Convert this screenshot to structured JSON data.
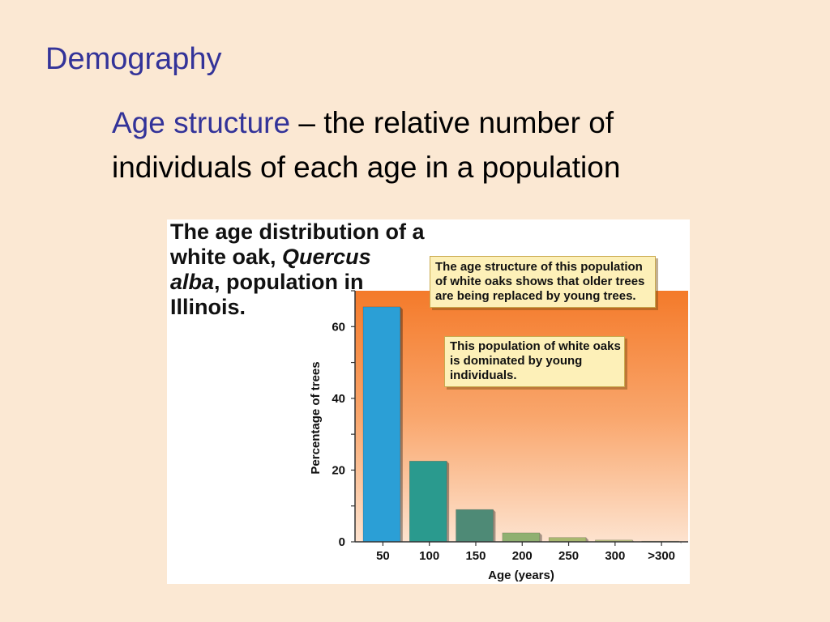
{
  "slide": {
    "title": "Demography",
    "definition_term": "Age structure",
    "definition_rest": " – the relative number of individuals of each age in a population"
  },
  "figure": {
    "title_line1": "The age distribution of a",
    "title_line2_prefix": "white oak, ",
    "title_line2_italic": "Quercus",
    "title_line3_italic": "alba",
    "title_line3_rest": ", population in",
    "title_line4": "Illinois.",
    "callout_top": "The age structure of this population of white oaks shows that older trees are being replaced by young trees.",
    "callout_bars": "This population of white oaks is dominated by young individuals."
  },
  "colors": {
    "background": "#fbe8d3",
    "title_blue": "#333399",
    "callout_fill": "#fdf0b8"
  },
  "chart_data": {
    "type": "bar",
    "categories": [
      "50",
      "100",
      "150",
      "200",
      "250",
      "300",
      ">300"
    ],
    "values": [
      65.5,
      22.5,
      9,
      2.5,
      1.2,
      0.5,
      0.1
    ],
    "bar_colors": [
      "#2b9fd6",
      "#2a9a8e",
      "#4e8a76",
      "#8fb070",
      "#a8b870",
      "#b8c080",
      "#c0c8a0"
    ],
    "xlabel": "Age (years)",
    "ylabel": "Percentage of trees",
    "ylim": [
      0,
      70
    ],
    "yticks": [
      0,
      20,
      40,
      60
    ],
    "grid": false
  }
}
